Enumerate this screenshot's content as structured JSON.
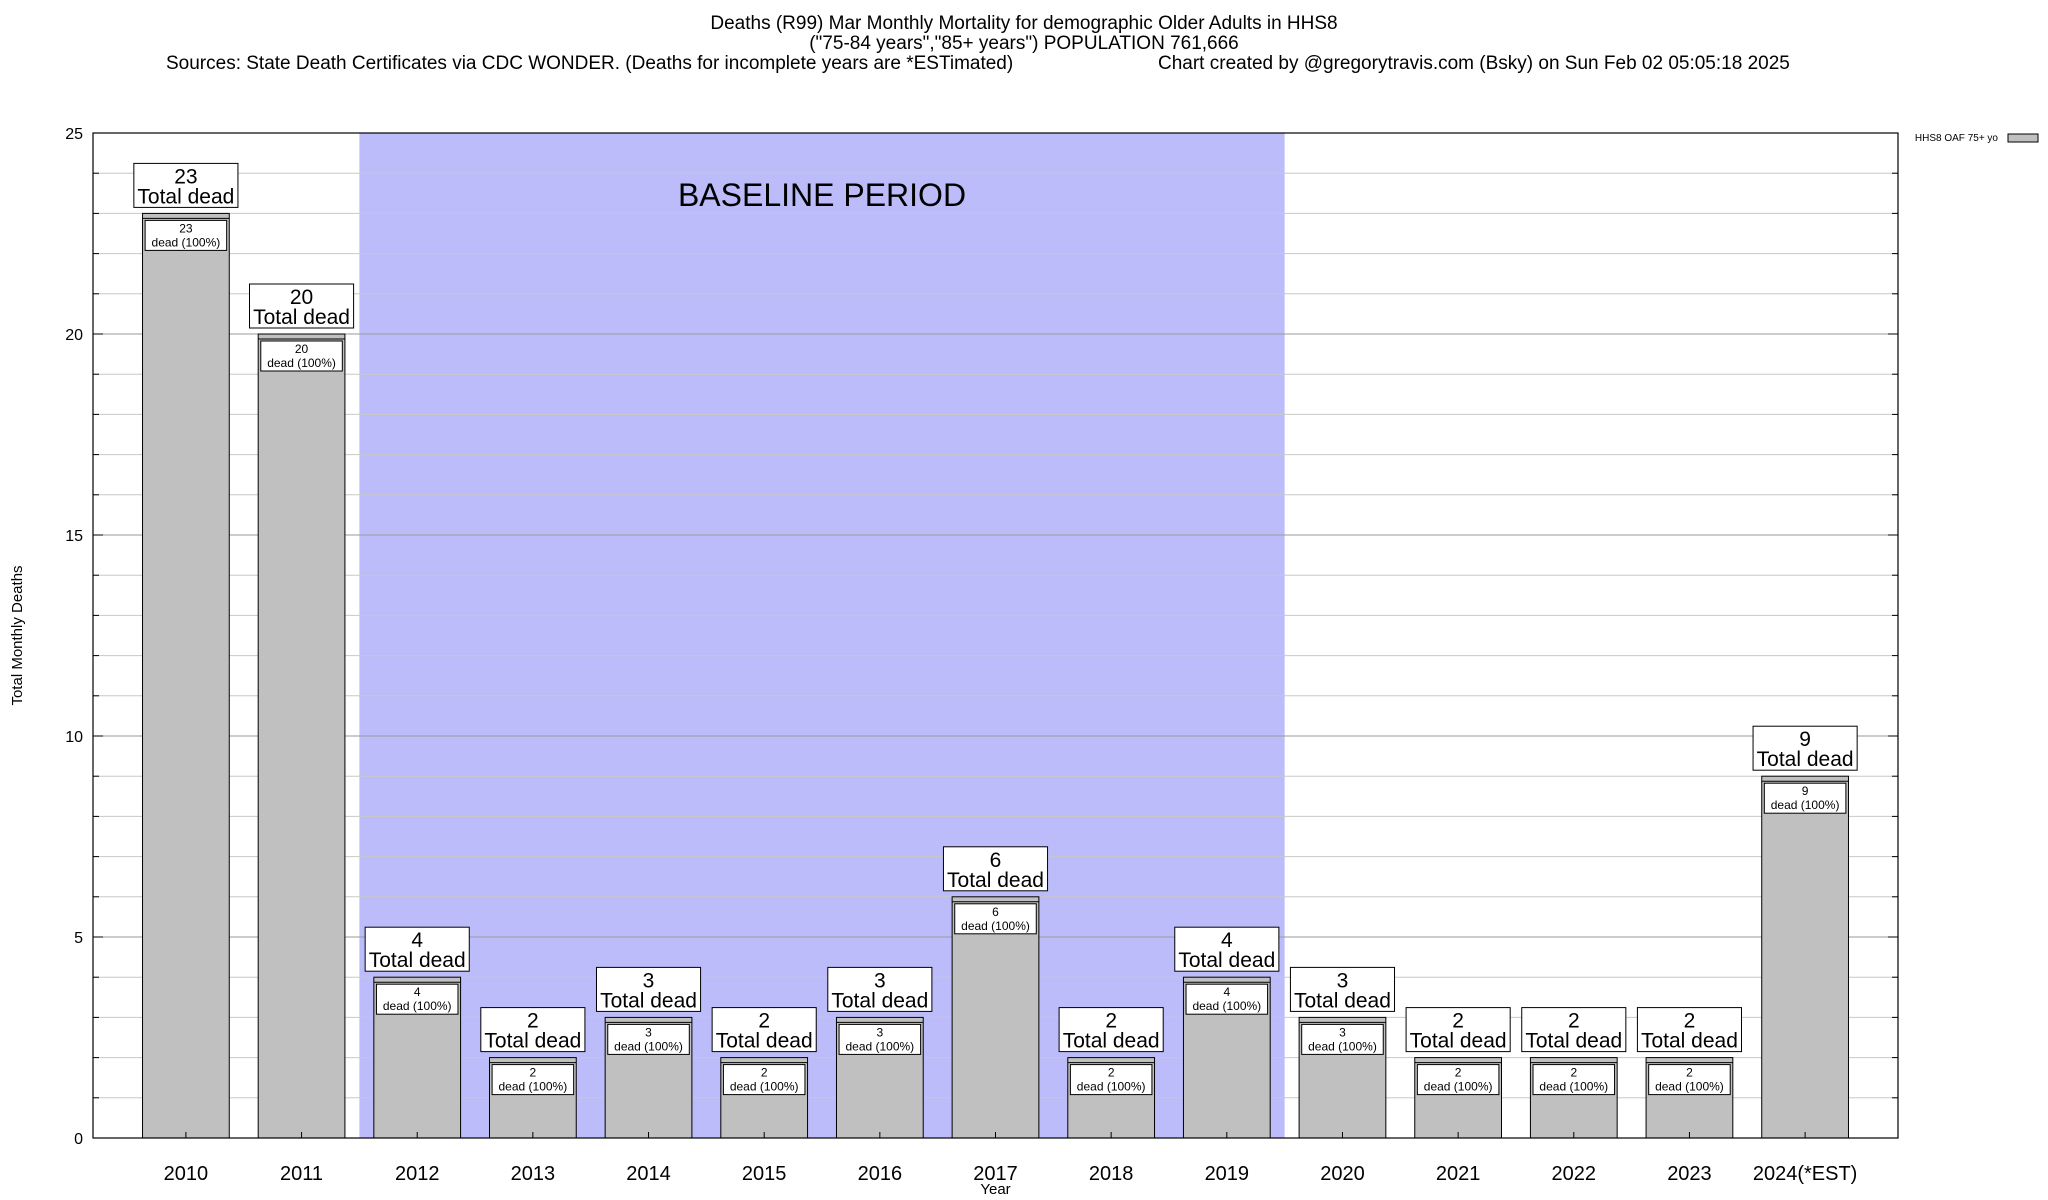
{
  "header": {
    "title_line1": "Deaths (R99) Mar Monthly Mortality for demographic Older Adults in HHS8",
    "title_line2": "(\"75-84 years\",\"85+ years\") POPULATION 761,666",
    "sources": "Sources: State Death Certificates via CDC WONDER. (Deaths for incomplete years are *ESTimated)",
    "credit": "Chart created by @gregorytravis.com (Bsky) on Sun Feb 02 05:05:18 2025"
  },
  "chart_data": {
    "type": "bar",
    "xlabel": "Year",
    "ylabel": "Total Monthly Deaths",
    "ylim": [
      0,
      25
    ],
    "yticks": [
      0,
      5,
      10,
      15,
      20,
      25
    ],
    "grid": true,
    "legend_position": "top-right",
    "categories": [
      "2010",
      "2011",
      "2012",
      "2013",
      "2014",
      "2015",
      "2016",
      "2017",
      "2018",
      "2019",
      "2020",
      "2021",
      "2022",
      "2023",
      "2024(*EST)"
    ],
    "series": [
      {
        "name": "HHS8 OAF 75+ yo",
        "values": [
          23,
          20,
          4,
          2,
          3,
          2,
          3,
          6,
          2,
          4,
          3,
          2,
          2,
          2,
          9
        ],
        "color": "#c0c0c0"
      }
    ],
    "total_label": "Total dead",
    "inner_label": "dead (100%)",
    "baseline": {
      "label": "BASELINE PERIOD",
      "start": "2012",
      "end": "2019",
      "color": "#bcbcfa"
    }
  }
}
